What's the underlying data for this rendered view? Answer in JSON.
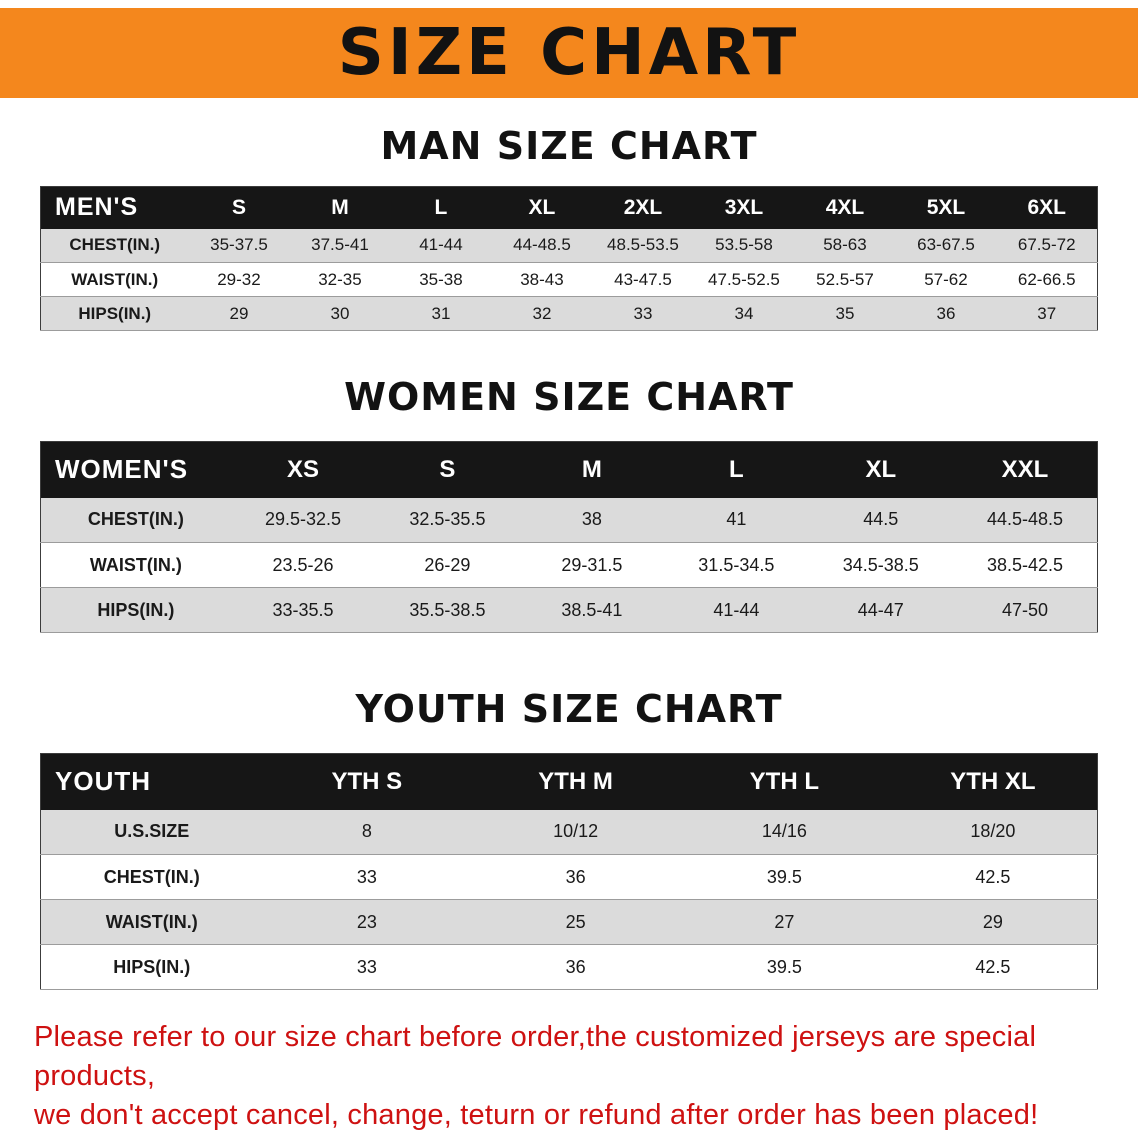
{
  "banner": {
    "title": "SIZE CHART"
  },
  "colors": {
    "banner_bg": "#F4871D",
    "header_bg": "#161616",
    "row_alt": "#DBDBDB",
    "disclaimer_red": "#CE1111"
  },
  "sections": [
    {
      "heading": "MAN SIZE CHART",
      "table": {
        "header": [
          "MEN'S",
          "S",
          "M",
          "L",
          "XL",
          "2XL",
          "3XL",
          "4XL",
          "5XL",
          "6XL"
        ],
        "rows": [
          [
            "CHEST(IN.)",
            "35-37.5",
            "37.5-41",
            "41-44",
            "44-48.5",
            "48.5-53.5",
            "53.5-58",
            "58-63",
            "63-67.5",
            "67.5-72"
          ],
          [
            "WAIST(IN.)",
            "29-32",
            "32-35",
            "35-38",
            "38-43",
            "43-47.5",
            "47.5-52.5",
            "52.5-57",
            "57-62",
            "62-66.5"
          ],
          [
            "HIPS(IN.)",
            "29",
            "30",
            "31",
            "32",
            "33",
            "34",
            "35",
            "36",
            "37"
          ]
        ]
      }
    },
    {
      "heading": "WOMEN SIZE CHART",
      "table": {
        "header": [
          "WOMEN'S",
          "XS",
          "S",
          "M",
          "L",
          "XL",
          "XXL"
        ],
        "rows": [
          [
            "CHEST(IN.)",
            "29.5-32.5",
            "32.5-35.5",
            "38",
            "41",
            "44.5",
            "44.5-48.5"
          ],
          [
            "WAIST(IN.)",
            "23.5-26",
            "26-29",
            "29-31.5",
            "31.5-34.5",
            "34.5-38.5",
            "38.5-42.5"
          ],
          [
            "HIPS(IN.)",
            "33-35.5",
            "35.5-38.5",
            "38.5-41",
            "41-44",
            "44-47",
            "47-50"
          ]
        ]
      }
    },
    {
      "heading": "YOUTH SIZE CHART",
      "table": {
        "header": [
          "YOUTH",
          "YTH S",
          "YTH M",
          "YTH L",
          "YTH XL"
        ],
        "rows": [
          [
            "U.S.SIZE",
            "8",
            "10/12",
            "14/16",
            "18/20"
          ],
          [
            "CHEST(IN.)",
            "33",
            "36",
            "39.5",
            "42.5"
          ],
          [
            "WAIST(IN.)",
            "23",
            "25",
            "27",
            "29"
          ],
          [
            "HIPS(IN.)",
            "33",
            "36",
            "39.5",
            "42.5"
          ]
        ]
      }
    }
  ],
  "disclaimer": {
    "line1": "Please refer to our size chart before order,the customized jerseys are special products,",
    "line2": "we don't accept cancel, change, teturn or refund after order has been placed!"
  }
}
